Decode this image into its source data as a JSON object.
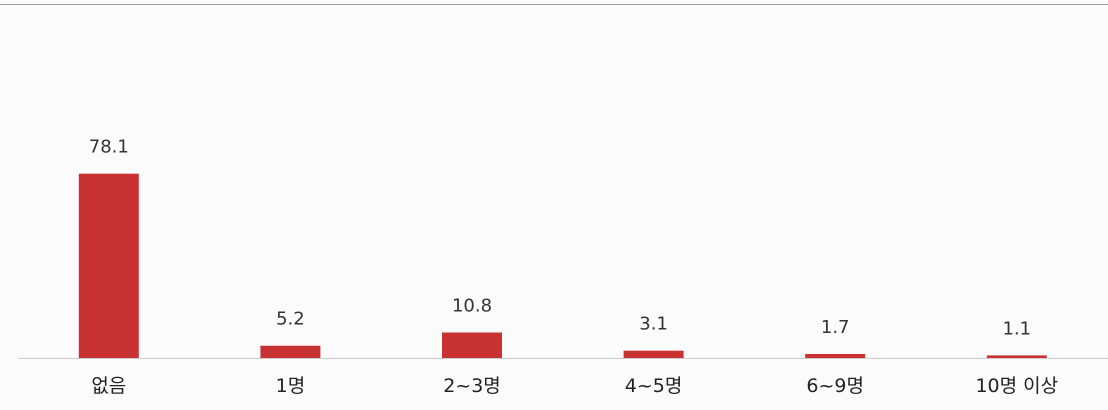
{
  "chart_data": {
    "type": "bar",
    "title": "",
    "xlabel": "",
    "ylabel": "",
    "categories": [
      "없음",
      "1명",
      "2~3명",
      "4~5명",
      "6~9명",
      "10명 이상"
    ],
    "values": [
      78.1,
      5.2,
      10.8,
      3.1,
      1.7,
      1.1
    ],
    "value_labels": [
      "78.1",
      "5.2",
      "10.8",
      "3.1",
      "1.7",
      "1.1"
    ],
    "ylim": [
      0,
      100
    ],
    "grid": false,
    "legend": "none",
    "colors": {
      "bar": "#c83232",
      "baseline": "#cccccc",
      "top_border": "#999999",
      "background": "#fbfbfb"
    }
  }
}
